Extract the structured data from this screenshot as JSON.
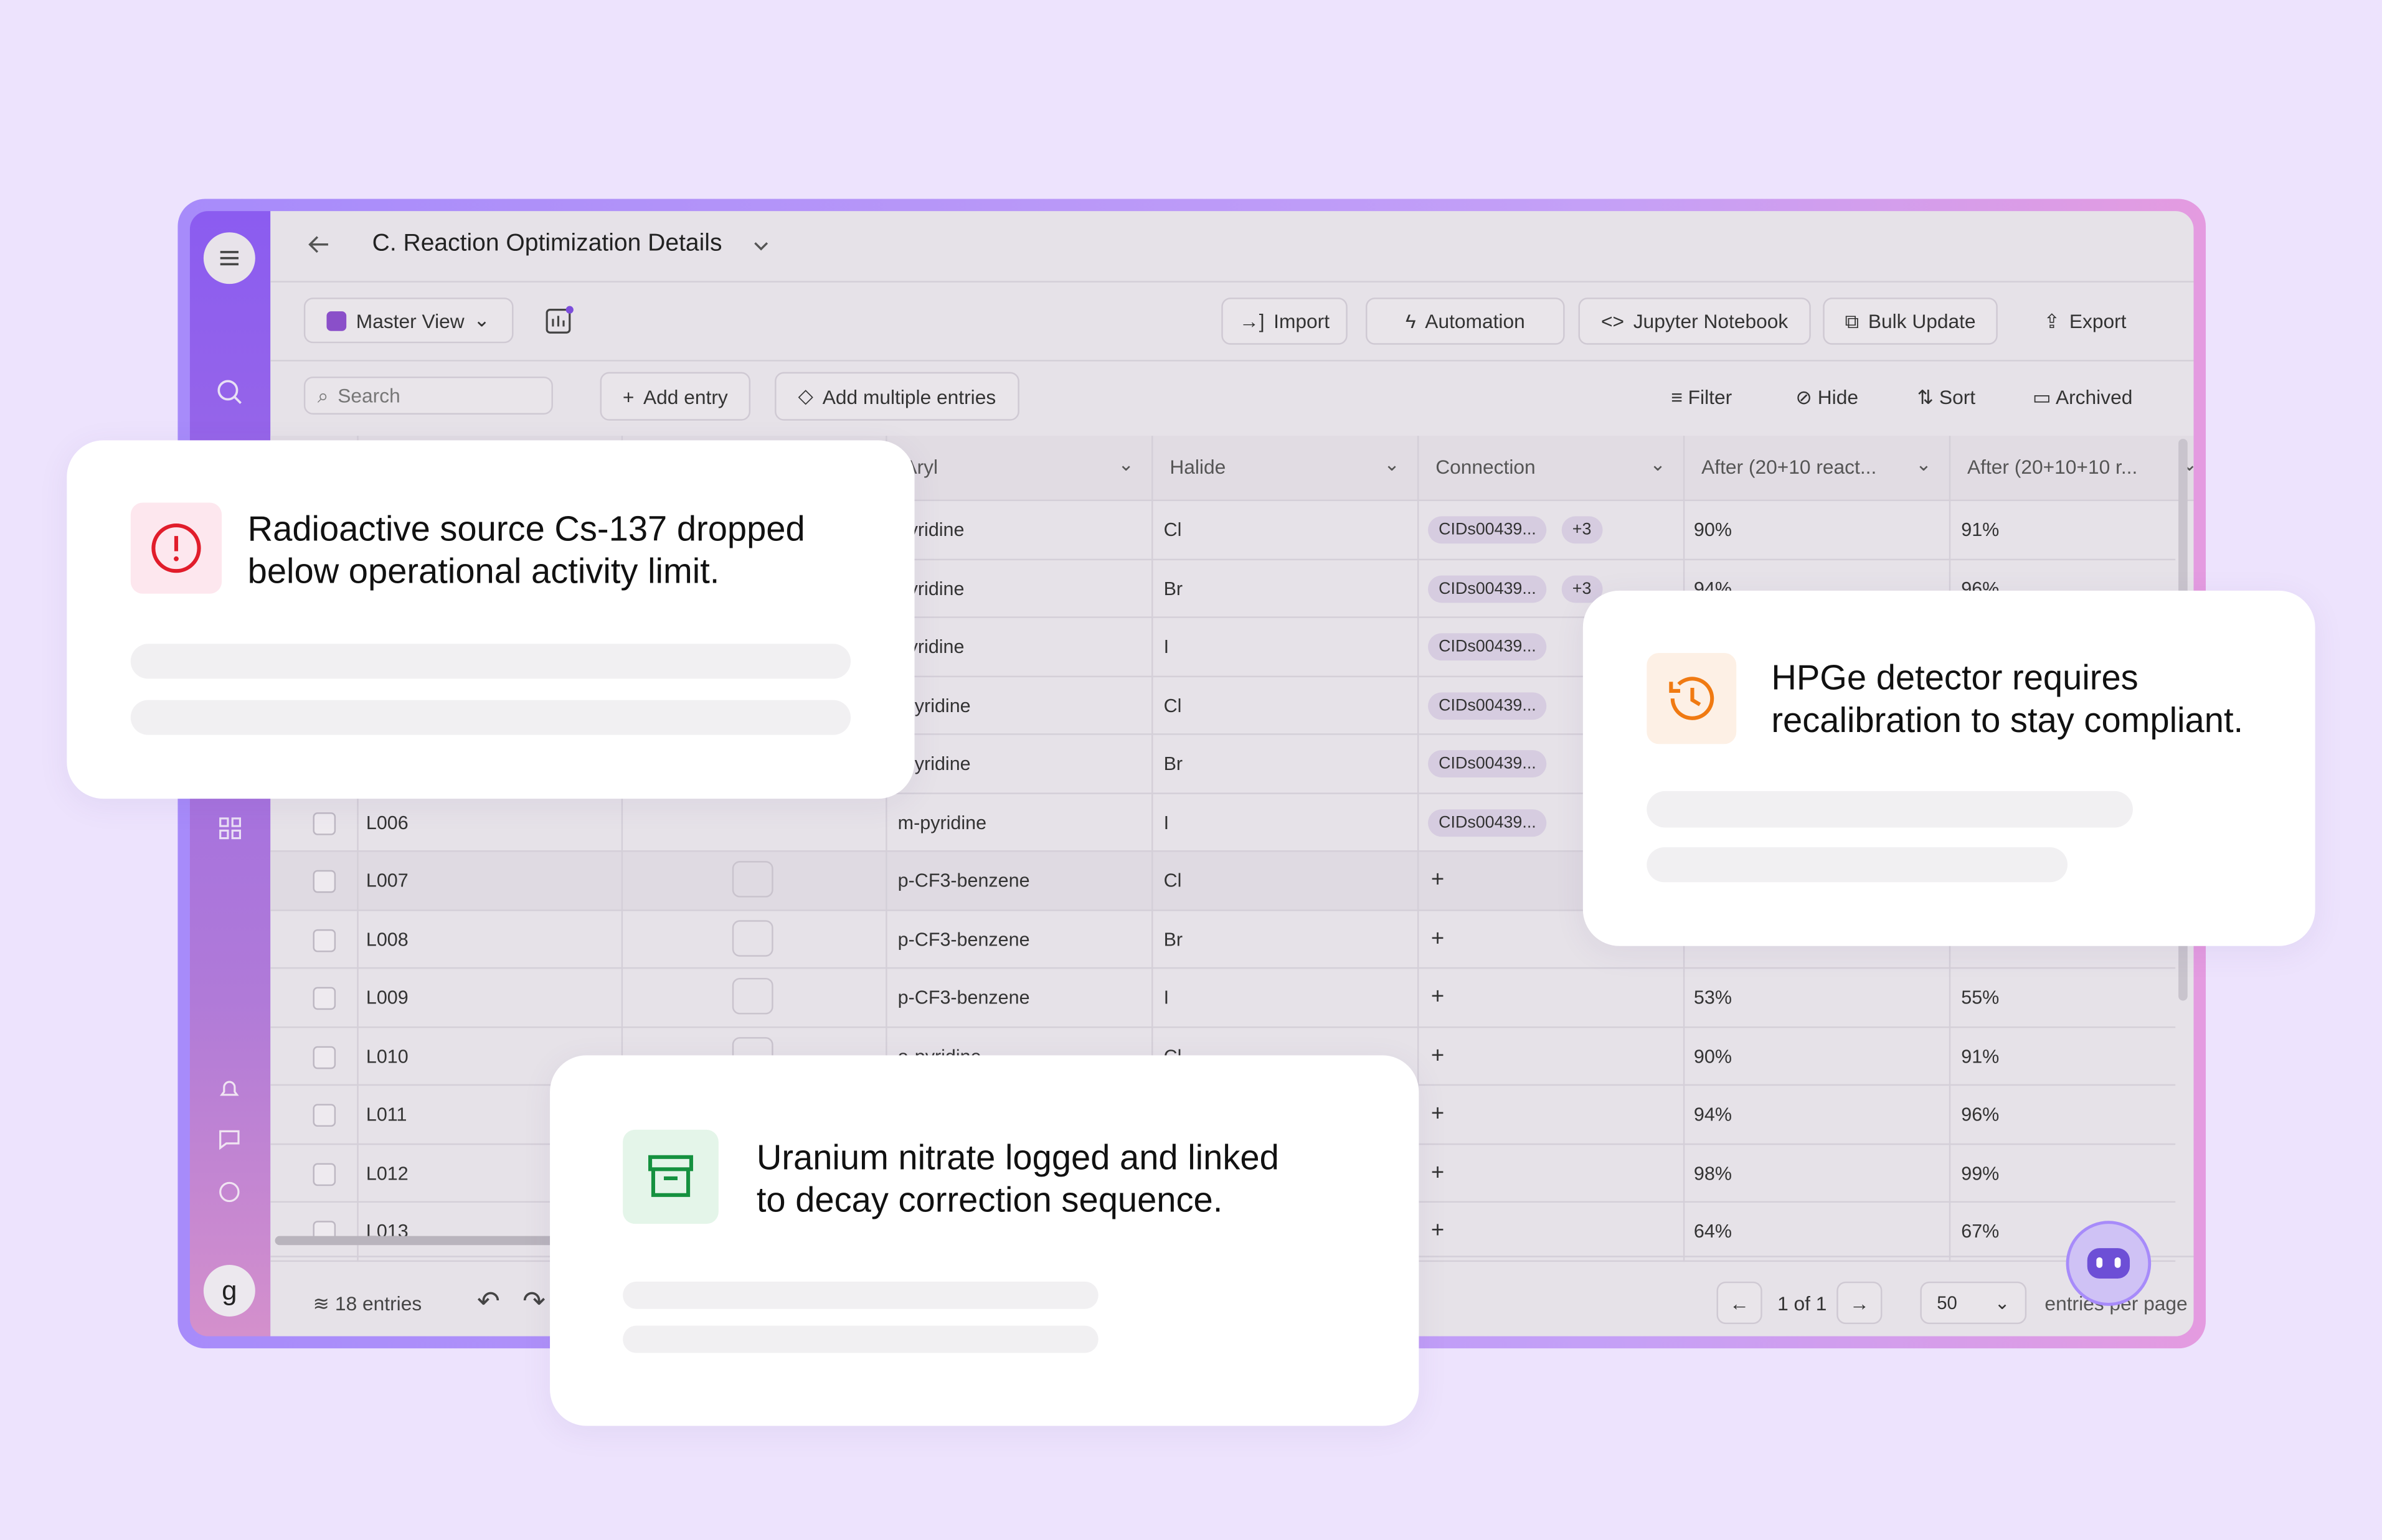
{
  "header": {
    "title": "C. Reaction Optimization Details"
  },
  "sidebar": {
    "avatar": "g"
  },
  "toolbar": {
    "view": "Master View",
    "buttons": [
      "Import",
      "Automation",
      "Jupyter Notebook",
      "Bulk Update",
      "Export"
    ]
  },
  "actions": {
    "search": "Search",
    "add": [
      "Add entry",
      "Add multiple entries"
    ],
    "tools": [
      "Filter",
      "Hide",
      "Sort",
      "Archived"
    ]
  },
  "table": {
    "columns": [
      "Aryl",
      "Halide",
      "Connection",
      "After (20+10 react...",
      "After (20+10+10 r..."
    ],
    "rows": [
      {
        "aryl": "pyridine",
        "halide": "Cl",
        "connection": "CIDs00439...",
        "extra": "+3",
        "after1": "90%",
        "after2": "91%"
      },
      {
        "aryl": "pyridine",
        "halide": "Br",
        "connection": "CIDs00439...",
        "extra": "+3",
        "after1": "94%",
        "after2": "96%"
      },
      {
        "aryl": "pyridine",
        "halide": "I",
        "connection": "CIDs00439..."
      },
      {
        "aryl": "-pyridine",
        "halide": "Cl",
        "connection": "CIDs00439..."
      },
      {
        "aryl": "-pyridine",
        "halide": "Br",
        "connection": "CIDs00439..."
      },
      {
        "id": "L006",
        "aryl": "m-pyridine",
        "halide": "I",
        "connection": "CIDs00439..."
      },
      {
        "id": "L007",
        "aryl": "p-CF3-benzene",
        "halide": "Cl"
      },
      {
        "id": "L008",
        "aryl": "p-CF3-benzene",
        "halide": "Br"
      },
      {
        "id": "L009",
        "aryl": "p-CF3-benzene",
        "halide": "I",
        "after1": "53%",
        "after2": "55%"
      },
      {
        "id": "L010",
        "aryl": "o-pyridine",
        "halide": "Cl",
        "after1": "90%",
        "after2": "91%"
      },
      {
        "id": "L011",
        "after1": "94%",
        "after2": "96%"
      },
      {
        "id": "L012",
        "after1": "98%",
        "after2": "99%"
      },
      {
        "id": "L013",
        "after1": "64%",
        "after2": "67%"
      }
    ]
  },
  "footer": {
    "entries": "18 entries",
    "page": "1 of 1",
    "per_page": "50",
    "per_page_label": "entries per page"
  },
  "notifications": [
    {
      "text": [
        "Radioactive source Cs-137 dropped",
        "below operational activity limit."
      ]
    },
    {
      "text": [
        "HPGe detector requires",
        "recalibration to stay compliant."
      ]
    },
    {
      "text": [
        "Uranium nitrate logged and linked",
        "to decay correction sequence."
      ]
    }
  ]
}
